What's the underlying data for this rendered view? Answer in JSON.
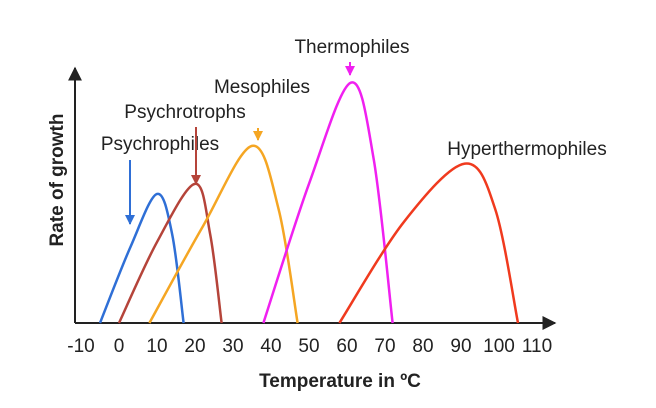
{
  "chart_data": {
    "type": "line",
    "x_label": "Temperature in ºC",
    "y_label": "Rate of growth",
    "xlim": [
      -10,
      110
    ],
    "xticks": [
      -10,
      0,
      10,
      20,
      30,
      40,
      50,
      60,
      70,
      80,
      90,
      100,
      110
    ],
    "ylim": [
      0,
      100
    ],
    "series": [
      {
        "name": "Psychrophiles",
        "color": "#2f6fd6",
        "x": [
          -5,
          3,
          10,
          14,
          17
        ],
        "values": [
          0,
          30,
          51,
          35,
          0
        ]
      },
      {
        "name": "Psychrotrophs",
        "color": "#b5443a",
        "x": [
          0,
          10,
          20,
          24,
          27
        ],
        "values": [
          0,
          32,
          55,
          35,
          0
        ]
      },
      {
        "name": "Mesophiles",
        "color": "#f5a623",
        "x": [
          8,
          22,
          35,
          42,
          47
        ],
        "values": [
          0,
          38,
          70,
          45,
          0
        ]
      },
      {
        "name": "Thermophiles",
        "color": "#f020f0",
        "x": [
          38,
          50,
          61,
          67,
          72
        ],
        "values": [
          0,
          55,
          95,
          65,
          0
        ]
      },
      {
        "name": "Hyperthermophiles",
        "color": "#f03a1e",
        "x": [
          58,
          75,
          91,
          99,
          105
        ],
        "values": [
          0,
          40,
          63,
          45,
          0
        ]
      }
    ]
  }
}
